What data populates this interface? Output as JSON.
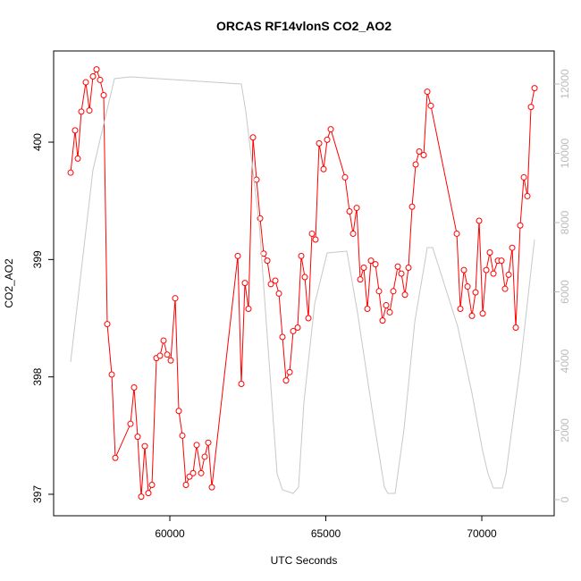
{
  "chart_data": {
    "type": "line",
    "title": "ORCAS RF14vlonS CO2_AO2",
    "x_label": "UTC Seconds",
    "y_label": "CO2_AO2",
    "xlim": [
      56275,
      72320
    ],
    "xticks": [
      60000,
      65000,
      70000
    ],
    "ylim": [
      396.817,
      400.777
    ],
    "yticks": [
      397,
      398,
      399,
      400
    ],
    "y2lim": [
      -464,
      12955
    ],
    "y2ticks": [
      0,
      2000,
      4000,
      6000,
      8000,
      10000,
      12000
    ],
    "series": [
      {
        "color": "#ff0000",
        "markers": true,
        "x": [
          56820,
          56963,
          57049,
          57163,
          57307,
          57421,
          57536,
          57650,
          57765,
          57880,
          57994,
          58138,
          58252,
          58739,
          58854,
          58968,
          59083,
          59198,
          59312,
          59427,
          59570,
          59685,
          59799,
          59914,
          60029,
          60172,
          60287,
          60401,
          60516,
          60630,
          60745,
          60860,
          61003,
          61117,
          61232,
          61347,
          62178,
          62292,
          62407,
          62521,
          62665,
          62779,
          62894,
          63009,
          63123,
          63238,
          63381,
          63496,
          63610,
          63725,
          63840,
          63954,
          64097,
          64212,
          64327,
          64441,
          64556,
          64670,
          64785,
          64928,
          65043,
          65158,
          65616,
          65759,
          65874,
          65989,
          66103,
          66218,
          66332,
          66447,
          66590,
          66705,
          66819,
          66934,
          67049,
          67163,
          67307,
          67421,
          67536,
          67650,
          67765,
          67880,
          67994,
          68138,
          68252,
          68367,
          69198,
          69312,
          69427,
          69542,
          69685,
          69799,
          69914,
          70029,
          70143,
          70258,
          70372,
          70516,
          70630,
          70745,
          70860,
          70974,
          71089,
          71232,
          71347,
          71461,
          71576,
          71691
        ],
        "values": [
          399.74,
          400.1,
          399.86,
          400.26,
          400.51,
          400.27,
          400.56,
          400.62,
          400.53,
          400.4,
          398.45,
          398.02,
          397.31,
          397.6,
          397.91,
          397.49,
          396.98,
          397.41,
          397.01,
          397.08,
          398.16,
          398.18,
          398.31,
          398.19,
          398.14,
          398.67,
          397.71,
          397.5,
          397.08,
          397.15,
          397.18,
          397.42,
          397.18,
          397.32,
          397.44,
          397.06,
          399.03,
          397.94,
          398.8,
          398.58,
          400.04,
          399.68,
          399.35,
          399.05,
          398.99,
          398.79,
          398.82,
          398.71,
          398.34,
          397.97,
          398.04,
          398.39,
          398.42,
          399.03,
          398.85,
          398.5,
          399.22,
          399.17,
          399.99,
          399.77,
          400.02,
          400.11,
          399.7,
          399.41,
          399.22,
          399.44,
          398.83,
          398.93,
          398.58,
          398.99,
          398.96,
          398.73,
          398.48,
          398.61,
          398.55,
          398.73,
          398.94,
          398.88,
          398.7,
          398.93,
          399.45,
          399.81,
          399.92,
          399.89,
          400.43,
          400.31,
          399.22,
          398.58,
          398.91,
          398.77,
          398.52,
          398.72,
          399.33,
          398.54,
          398.91,
          399.06,
          398.88,
          398.99,
          398.99,
          398.75,
          398.87,
          399.1,
          398.42,
          399.29,
          399.7,
          399.54,
          400.3,
          400.46
        ]
      },
      {
        "color": "#c8c8c8",
        "axis": "y2",
        "markers": false,
        "x": [
          56820,
          57536,
          58224,
          58739,
          62292,
          62436,
          62865,
          63152,
          63438,
          63610,
          63954,
          64126,
          64298,
          64642,
          65043,
          65673,
          66017,
          66533,
          66877,
          66991,
          67221,
          67507,
          67851,
          68252,
          68424,
          69226,
          69685,
          70029,
          70201,
          70372,
          70659,
          70774,
          71232,
          71633,
          71691
        ],
        "values": [
          3974,
          9523,
          12155,
          12206,
          12000,
          11200,
          7974,
          4361,
          748,
          284,
          181,
          361,
          2813,
          5652,
          7123,
          7174,
          5394,
          2297,
          361,
          181,
          181,
          2039,
          5135,
          7277,
          7277,
          5006,
          3071,
          1394,
          748,
          335,
          335,
          748,
          3845,
          7071,
          7510
        ]
      }
    ]
  }
}
